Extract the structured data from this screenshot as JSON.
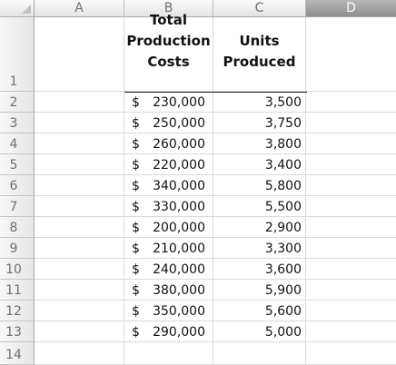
{
  "columns": [
    "A",
    "B",
    "C",
    "D"
  ],
  "headers": {
    "b": [
      "Total",
      "Production",
      "Costs"
    ],
    "c": [
      "Units",
      "Produced"
    ]
  },
  "row_numbers": [
    "1",
    "2",
    "3",
    "4",
    "5",
    "6",
    "7",
    "8",
    "9",
    "10",
    "11",
    "12",
    "13",
    "14"
  ],
  "rows": [
    {
      "currency": "$",
      "cost": "230,000",
      "units": "3,500"
    },
    {
      "currency": "$",
      "cost": "250,000",
      "units": "3,750"
    },
    {
      "currency": "$",
      "cost": "260,000",
      "units": "3,800"
    },
    {
      "currency": "$",
      "cost": "220,000",
      "units": "3,400"
    },
    {
      "currency": "$",
      "cost": "340,000",
      "units": "5,800"
    },
    {
      "currency": "$",
      "cost": "330,000",
      "units": "5,500"
    },
    {
      "currency": "$",
      "cost": "200,000",
      "units": "2,900"
    },
    {
      "currency": "$",
      "cost": "210,000",
      "units": "3,300"
    },
    {
      "currency": "$",
      "cost": "240,000",
      "units": "3,600"
    },
    {
      "currency": "$",
      "cost": "380,000",
      "units": "5,900"
    },
    {
      "currency": "$",
      "cost": "350,000",
      "units": "5,600"
    },
    {
      "currency": "$",
      "cost": "290,000",
      "units": "5,000"
    }
  ]
}
